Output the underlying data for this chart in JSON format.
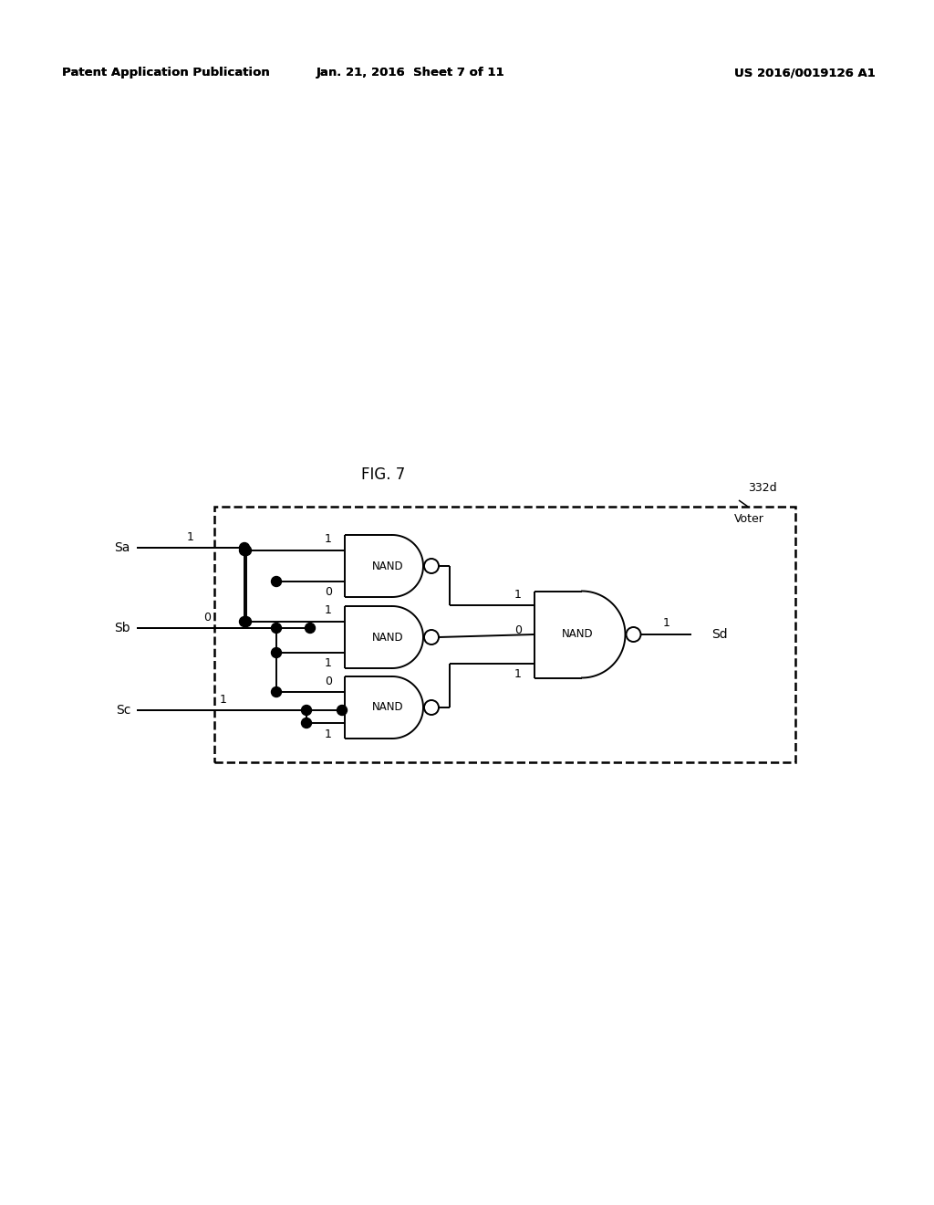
{
  "title": "FIG. 7",
  "header_left": "Patent Application Publication",
  "header_mid": "Jan. 21, 2016  Sheet 7 of 11",
  "header_right": "US 2016/0019126 A1",
  "label_332d": "332d",
  "label_voter": "Voter",
  "label_Sa": "Sa",
  "label_Sb": "Sb",
  "label_Sc": "Sc",
  "label_Sd": "Sd",
  "val_Sa": "1",
  "val_Sb": "0",
  "val_Sc": "1",
  "nand1_in1": "1",
  "nand1_in2": "0",
  "nand2_in1": "1",
  "nand2_in2": "1",
  "nand3_in1": "0",
  "nand3_in2": "1",
  "nand4_in1": "1",
  "nand4_in2": "0",
  "nand4_in3": "1",
  "nand4_out": "1",
  "background_color": "#ffffff",
  "line_color": "#000000"
}
